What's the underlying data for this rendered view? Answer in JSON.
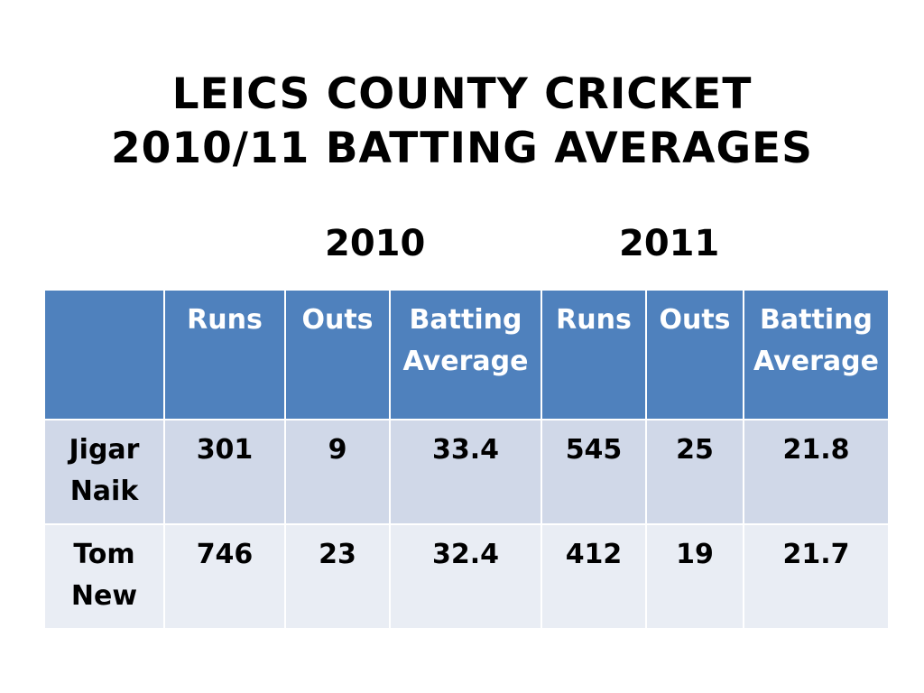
{
  "title": {
    "line1": "LEICS COUNTY CRICKET",
    "line2": "2010/11 BATTING AVERAGES"
  },
  "years": [
    "2010",
    "2011"
  ],
  "table": {
    "header": [
      "",
      "Runs",
      "Outs",
      "Batting Average",
      "Runs",
      "Outs",
      "Batting Average"
    ],
    "header_lines": [
      [
        "",
        ""
      ],
      [
        "Runs",
        ""
      ],
      [
        "Outs",
        ""
      ],
      [
        "Batting",
        "Average"
      ],
      [
        "Runs",
        ""
      ],
      [
        "Outs",
        ""
      ],
      [
        "Batting",
        "Average"
      ]
    ],
    "rows": [
      {
        "name_lines": [
          "Jigar",
          "Naik"
        ],
        "cells": [
          "301",
          "9",
          "33.4",
          "545",
          "25",
          "21.8"
        ]
      },
      {
        "name_lines": [
          "Tom",
          "New"
        ],
        "cells": [
          "746",
          "23",
          "32.4",
          "412",
          "19",
          "21.7"
        ]
      }
    ]
  },
  "colors": {
    "header_bg": "#4f81bd",
    "row_odd_bg": "#d0d8e8",
    "row_even_bg": "#e9edf4"
  }
}
